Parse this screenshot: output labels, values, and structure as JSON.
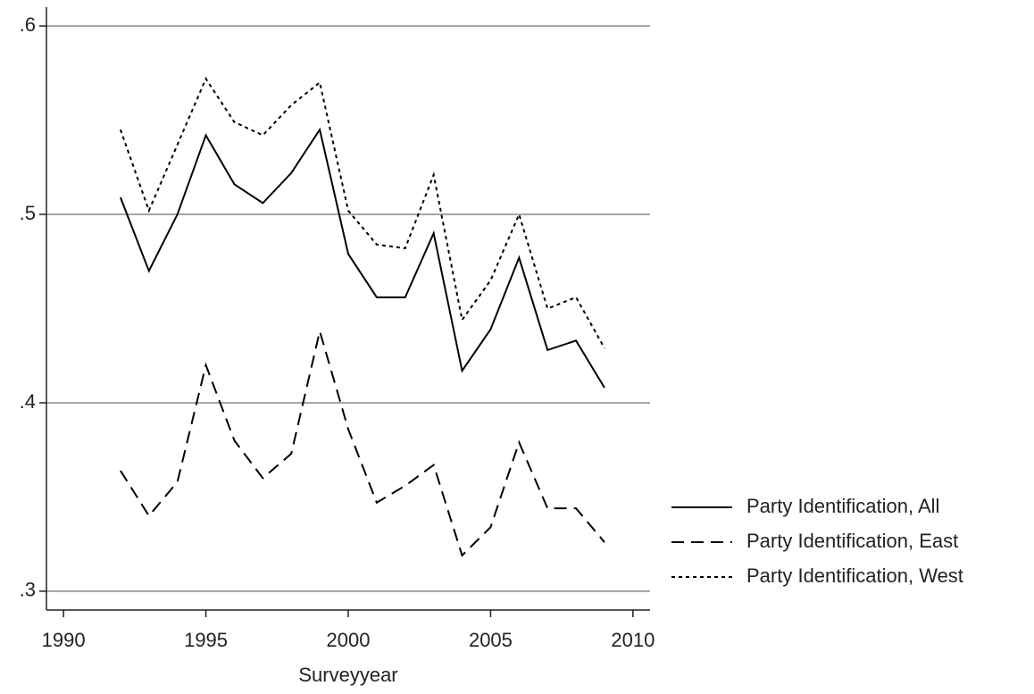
{
  "chart_data": {
    "type": "line",
    "xlabel": "Surveyyear",
    "x": [
      1992,
      1993,
      1994,
      1995,
      1996,
      1997,
      1998,
      1999,
      2000,
      2001,
      2002,
      2003,
      2004,
      2005,
      2006,
      2007,
      2008,
      2009
    ],
    "series": [
      {
        "name": "Party Identification, All",
        "color": "#000000",
        "line_style": "solid",
        "values": [
          0.509,
          0.47,
          0.5,
          0.542,
          0.516,
          0.506,
          0.522,
          0.545,
          0.479,
          0.456,
          0.456,
          0.49,
          0.417,
          0.439,
          0.477,
          0.428,
          0.433,
          0.408
        ]
      },
      {
        "name": "Party Identification, East",
        "color": "#000000",
        "line_style": "dashed",
        "values": [
          0.364,
          0.34,
          0.358,
          0.42,
          0.38,
          0.36,
          0.373,
          0.438,
          0.386,
          0.347,
          0.356,
          0.367,
          0.319,
          0.334,
          0.379,
          0.344,
          0.344,
          0.326
        ]
      },
      {
        "name": "Party Identification, West",
        "color": "#000000",
        "line_style": "dotted",
        "values": [
          0.545,
          0.502,
          0.537,
          0.572,
          0.549,
          0.542,
          0.558,
          0.57,
          0.502,
          0.484,
          0.482,
          0.521,
          0.444,
          0.465,
          0.5,
          0.45,
          0.456,
          0.429
        ]
      }
    ],
    "xlim": [
      1989.4,
      2010.6
    ],
    "xticks": [
      1990,
      1995,
      2000,
      2005,
      2010
    ],
    "ylim": [
      0.29,
      0.61
    ],
    "yticks": [
      {
        "value": 0.3,
        "label": ".3"
      },
      {
        "value": 0.4,
        "label": ".4"
      },
      {
        "value": 0.5,
        "label": ".5"
      },
      {
        "value": 0.6,
        "label": ".6"
      }
    ],
    "grid": true,
    "legend_position": "right"
  }
}
